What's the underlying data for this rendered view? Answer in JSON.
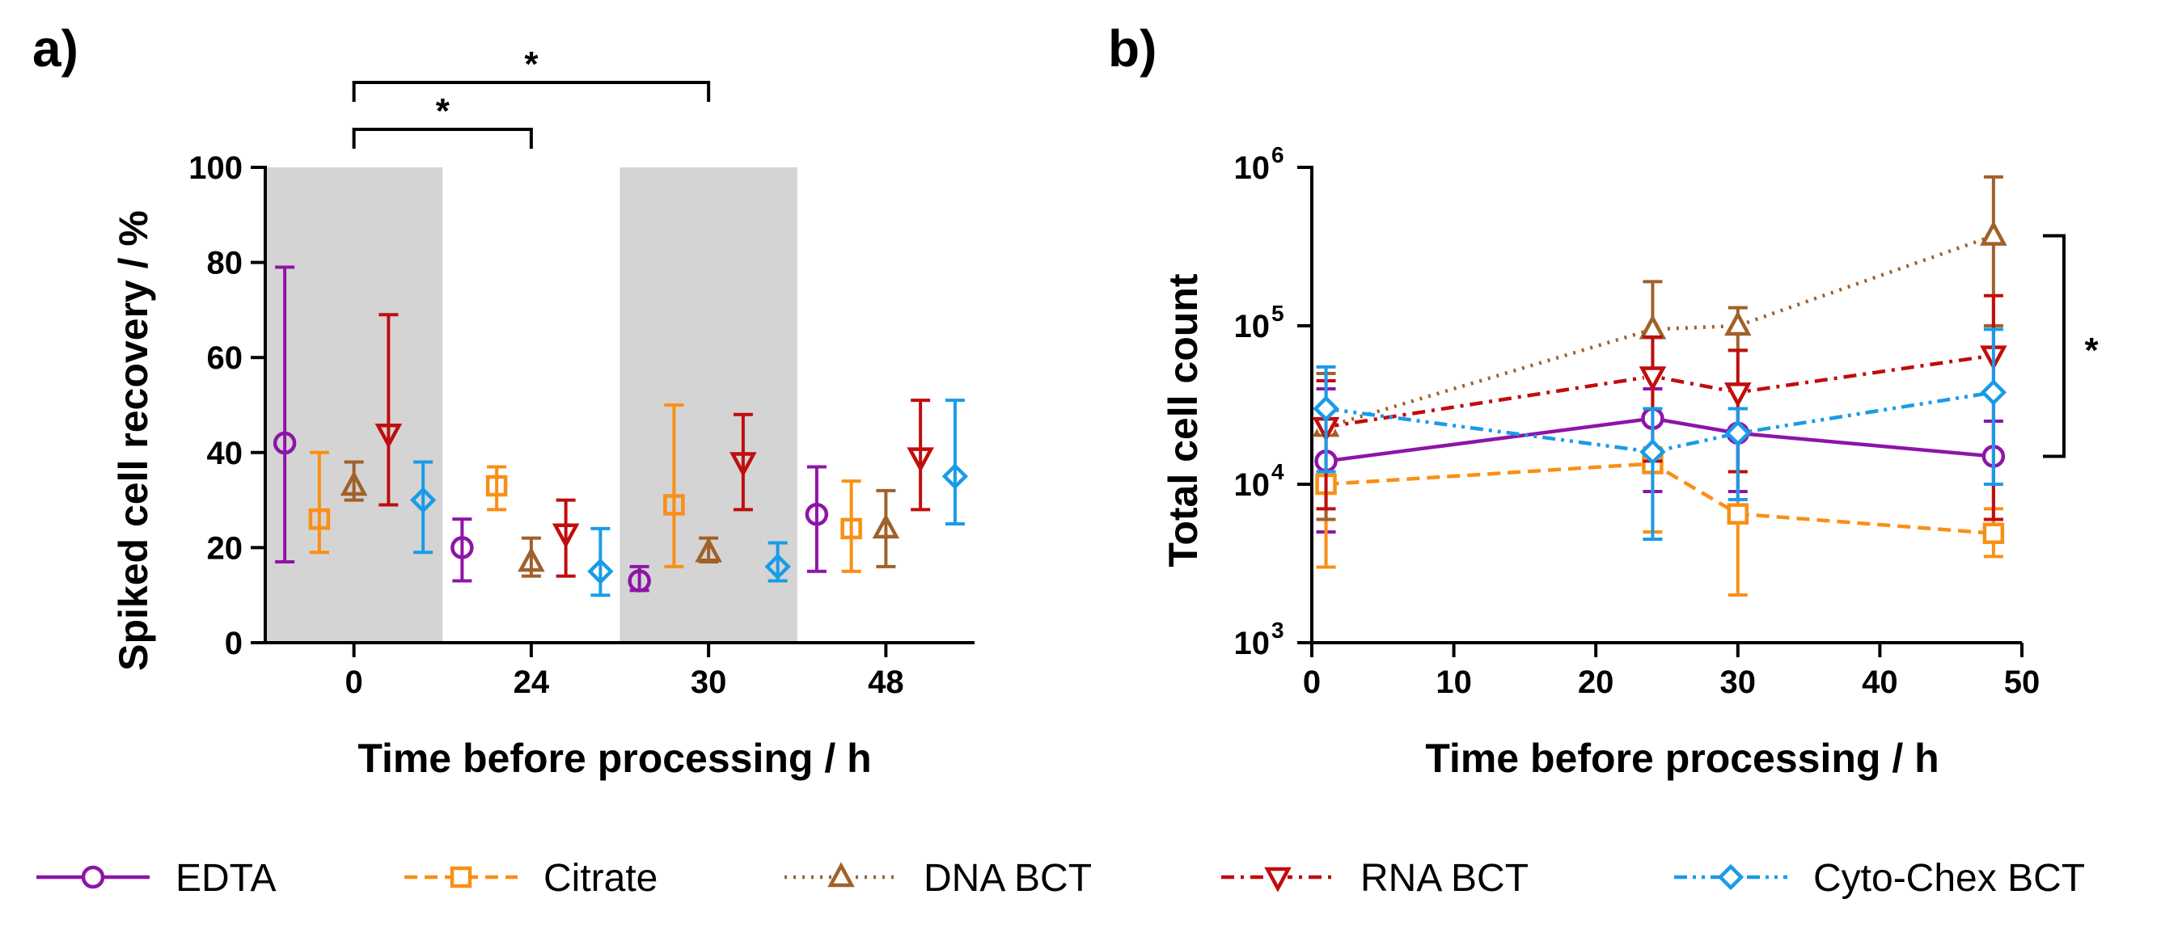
{
  "series_styles": [
    {
      "name": "EDTA",
      "color": "#8e14a8",
      "marker": "circle",
      "dash": "solid"
    },
    {
      "name": "Citrate",
      "color": "#f98f16",
      "marker": "square",
      "dash": "dashed"
    },
    {
      "name": "DNA BCT",
      "color": "#a0612a",
      "marker": "triangle-up",
      "dash": "dotted"
    },
    {
      "name": "RNA BCT",
      "color": "#c00d0d",
      "marker": "triangle-down",
      "dash": "dashdot"
    },
    {
      "name": "Cyto-Chex BCT",
      "color": "#1a9be8",
      "marker": "diamond",
      "dash": "dashdotdot"
    }
  ],
  "chart_data": [
    {
      "type": "scatter",
      "panel_label": "a)",
      "xlabel": "Time before processing / h",
      "ylabel": "Spiked cell recovery / %",
      "ylim": [
        0,
        100
      ],
      "yticks": [
        "0",
        "20",
        "40",
        "60",
        "80",
        "100"
      ],
      "categories": [
        "0",
        "24",
        "30",
        "48"
      ],
      "shaded_categories": [
        "0",
        "30"
      ],
      "series": [
        {
          "name": "EDTA",
          "values": [
            42,
            20,
            13,
            27
          ],
          "lower": [
            17,
            13,
            11,
            15
          ],
          "upper": [
            79,
            26,
            16,
            37
          ]
        },
        {
          "name": "Citrate",
          "values": [
            26,
            33,
            29,
            24
          ],
          "lower": [
            19,
            28,
            16,
            15
          ],
          "upper": [
            40,
            37,
            50,
            34
          ]
        },
        {
          "name": "DNA BCT",
          "values": [
            33,
            17,
            19,
            24
          ],
          "lower": [
            30,
            14,
            17,
            16
          ],
          "upper": [
            38,
            22,
            22,
            32
          ]
        },
        {
          "name": "RNA BCT",
          "values": [
            44,
            23,
            38,
            39
          ],
          "lower": [
            29,
            14,
            28,
            28
          ],
          "upper": [
            69,
            30,
            48,
            51
          ]
        },
        {
          "name": "Cyto-Chex BCT",
          "values": [
            30,
            15,
            16,
            35
          ],
          "lower": [
            19,
            10,
            13,
            25
          ],
          "upper": [
            38,
            24,
            21,
            51
          ]
        }
      ],
      "significance": [
        {
          "from": "0",
          "to": "24",
          "label": "*"
        },
        {
          "from": "0",
          "to": "30",
          "label": "*"
        }
      ]
    },
    {
      "type": "line",
      "panel_label": "b)",
      "xlabel": "Time before processing / h",
      "ylabel": "Total cell count",
      "yscale": "log",
      "xlim": [
        0,
        50
      ],
      "ylim": [
        1000,
        1000000
      ],
      "xticks": [
        "0",
        "10",
        "20",
        "30",
        "40",
        "50"
      ],
      "yticks": [
        {
          "base": "10",
          "exp": "3"
        },
        {
          "base": "10",
          "exp": "4"
        },
        {
          "base": "10",
          "exp": "5"
        },
        {
          "base": "10",
          "exp": "6"
        }
      ],
      "x": [
        1,
        24,
        30,
        48
      ],
      "series": [
        {
          "name": "EDTA",
          "values": [
            14000,
            26000,
            21000,
            15000
          ],
          "lower": [
            5000,
            9000,
            9000,
            6000
          ],
          "upper": [
            40000,
            40000,
            30000,
            25000
          ]
        },
        {
          "name": "Citrate",
          "values": [
            10000,
            13500,
            6500,
            4900
          ],
          "lower": [
            3000,
            5000,
            2000,
            3500
          ],
          "upper": [
            30000,
            17000,
            12000,
            7000
          ]
        },
        {
          "name": "DNA BCT",
          "values": [
            23000,
            95000,
            100000,
            370000
          ],
          "lower": [
            6000,
            30000,
            70000,
            100000
          ],
          "upper": [
            50000,
            190000,
            130000,
            870000
          ]
        },
        {
          "name": "RNA BCT",
          "values": [
            23000,
            48000,
            38000,
            65000
          ],
          "lower": [
            7000,
            14000,
            12000,
            6000
          ],
          "upper": [
            45000,
            85000,
            70000,
            155000
          ]
        },
        {
          "name": "Cyto-Chex BCT",
          "values": [
            30000,
            16000,
            21000,
            38000
          ],
          "lower": [
            12000,
            4500,
            8000,
            10000
          ],
          "upper": [
            55000,
            30000,
            30000,
            95000
          ]
        }
      ],
      "significance": [
        {
          "label": "*"
        }
      ]
    }
  ],
  "legend": {
    "entries": [
      "EDTA",
      "Citrate",
      "DNA BCT",
      "RNA BCT",
      "Cyto-Chex BCT"
    ]
  }
}
